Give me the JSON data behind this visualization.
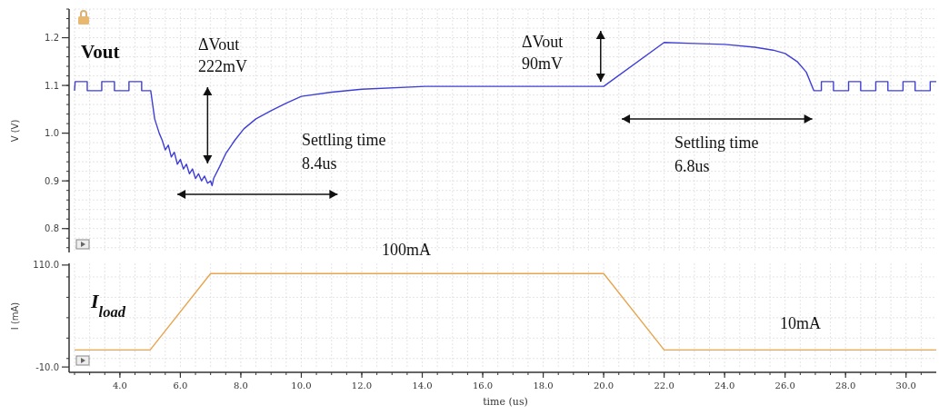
{
  "chart_data": [
    {
      "type": "line",
      "ylabel": "V (V)",
      "xlim": [
        2.5,
        31.0
      ],
      "ylim": [
        0.75,
        1.26
      ],
      "yticks": [
        {
          "value": 0.8,
          "label": "0.8"
        },
        {
          "value": 0.9,
          "label": "0.9"
        },
        {
          "value": 1.0,
          "label": "1.0"
        },
        {
          "value": 1.1,
          "label": "1.1"
        },
        {
          "value": 1.2,
          "label": "1.2"
        }
      ],
      "grid": true,
      "tick_labels": "y",
      "series": [
        {
          "color": "#3f3fd8",
          "x": [
            2.5,
            2.52,
            2.92,
            2.92,
            3.4,
            3.4,
            3.82,
            3.82,
            4.3,
            4.3,
            4.72,
            4.72,
            5.02,
            5.15,
            5.3,
            5.4,
            5.5,
            5.6,
            5.7,
            5.8,
            5.9,
            6.0,
            6.1,
            6.2,
            6.3,
            6.4,
            6.5,
            6.6,
            6.7,
            6.8,
            6.9,
            7.0,
            7.05,
            7.1,
            7.3,
            7.5,
            7.8,
            8.1,
            8.5,
            9.0,
            9.5,
            10.0,
            11.0,
            12.0,
            14.1,
            16.0,
            18.0,
            20.0,
            22.0,
            23.0,
            24.0,
            25.0,
            25.6,
            26.0,
            26.4,
            26.7,
            26.95,
            27.2,
            27.2,
            27.6,
            27.6,
            28.1,
            28.1,
            28.5,
            28.5,
            29.0,
            29.0,
            29.4,
            29.4,
            29.9,
            29.9,
            30.3,
            30.3,
            30.8,
            30.8,
            31.0
          ],
          "values": [
            1.089,
            1.108,
            1.108,
            1.089,
            1.089,
            1.108,
            1.108,
            1.089,
            1.089,
            1.108,
            1.108,
            1.089,
            1.089,
            1.03,
            1.0,
            0.985,
            0.965,
            0.975,
            0.95,
            0.96,
            0.935,
            0.945,
            0.925,
            0.935,
            0.915,
            0.925,
            0.905,
            0.915,
            0.9,
            0.91,
            0.895,
            0.9,
            0.89,
            0.905,
            0.93,
            0.957,
            0.985,
            1.009,
            1.03,
            1.047,
            1.063,
            1.077,
            1.086,
            1.092,
            1.098,
            1.098,
            1.098,
            1.098,
            1.19,
            1.188,
            1.186,
            1.18,
            1.174,
            1.167,
            1.15,
            1.128,
            1.089,
            1.089,
            1.108,
            1.108,
            1.089,
            1.089,
            1.108,
            1.108,
            1.089,
            1.089,
            1.108,
            1.108,
            1.089,
            1.089,
            1.108,
            1.108,
            1.089,
            1.089,
            1.108,
            1.108
          ]
        }
      ],
      "annotations": [
        "Vout",
        "ΔVout\n222mV",
        "Settling time\n8.4us",
        "ΔVout\n90mV",
        "Settling time\n6.8us",
        "100mA"
      ]
    },
    {
      "type": "line",
      "xlabel": "time (us)",
      "ylabel": "I (mA)",
      "xlim": [
        2.5,
        31.0
      ],
      "ylim": [
        -12,
        112
      ],
      "yticks": [
        {
          "value": -10,
          "label": "-10.0"
        },
        {
          "value": 110,
          "label": "110.0"
        }
      ],
      "xticks": [
        {
          "value": 4,
          "label": "4.0"
        },
        {
          "value": 6,
          "label": "6.0"
        },
        {
          "value": 8,
          "label": "8.0"
        },
        {
          "value": 10,
          "label": "10.0"
        },
        {
          "value": 12,
          "label": "12.0"
        },
        {
          "value": 14,
          "label": "14.0"
        },
        {
          "value": 16,
          "label": "16.0"
        },
        {
          "value": 18,
          "label": "18.0"
        },
        {
          "value": 20,
          "label": "20.0"
        },
        {
          "value": 22,
          "label": "22.0"
        },
        {
          "value": 24,
          "label": "24.0"
        },
        {
          "value": 26,
          "label": "26.0"
        },
        {
          "value": 28,
          "label": "28.0"
        },
        {
          "value": 30,
          "label": "30.0"
        }
      ],
      "grid": true,
      "series": [
        {
          "color": "#e8a550",
          "x": [
            2.5,
            5,
            7,
            20,
            22,
            31
          ],
          "values": [
            10,
            10,
            100,
            100,
            10,
            10
          ]
        }
      ],
      "annotations": [
        "I$_{load}$",
        "10mA"
      ]
    }
  ]
}
